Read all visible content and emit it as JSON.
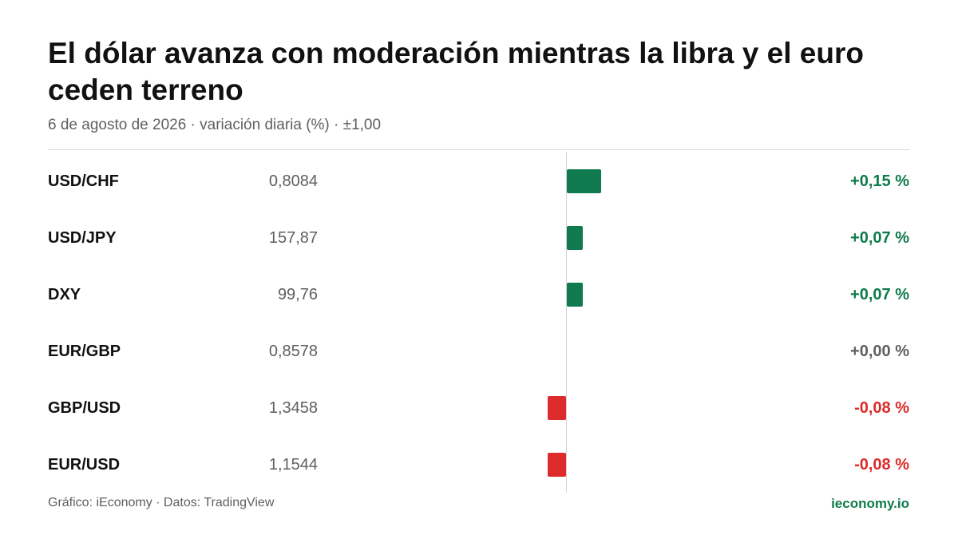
{
  "title": "El dólar avanza con moderación mientras la libra y el euro ceden terreno",
  "subtitle": "6 de agosto de 2026 · variación diaria (%) · ±1,00",
  "footer": {
    "source": "Gráfico: iEconomy · Datos: TradingView",
    "brand": "ieconomy.io"
  },
  "colors": {
    "positive": "#0e7a4d",
    "negative": "#dd2a2a",
    "neutral": "#5f5f5f",
    "brand": "#0e7a4d"
  },
  "chart_data": {
    "type": "bar",
    "orientation": "horizontal",
    "categories": [
      "USD/CHF",
      "USD/JPY",
      "DXY",
      "EUR/GBP",
      "GBP/USD",
      "EUR/USD"
    ],
    "prices": [
      "0,8084",
      "157,87",
      "99,76",
      "0,8578",
      "1,3458",
      "1,1544"
    ],
    "values": [
      0.15,
      0.07,
      0.07,
      0.0,
      -0.08,
      -0.08
    ],
    "value_labels": [
      "+0,15 %",
      "+0,07 %",
      "+0,07 %",
      "+0,00 %",
      "-0,08 %",
      "-0,08 %"
    ],
    "xlim": [
      -1,
      1
    ]
  }
}
